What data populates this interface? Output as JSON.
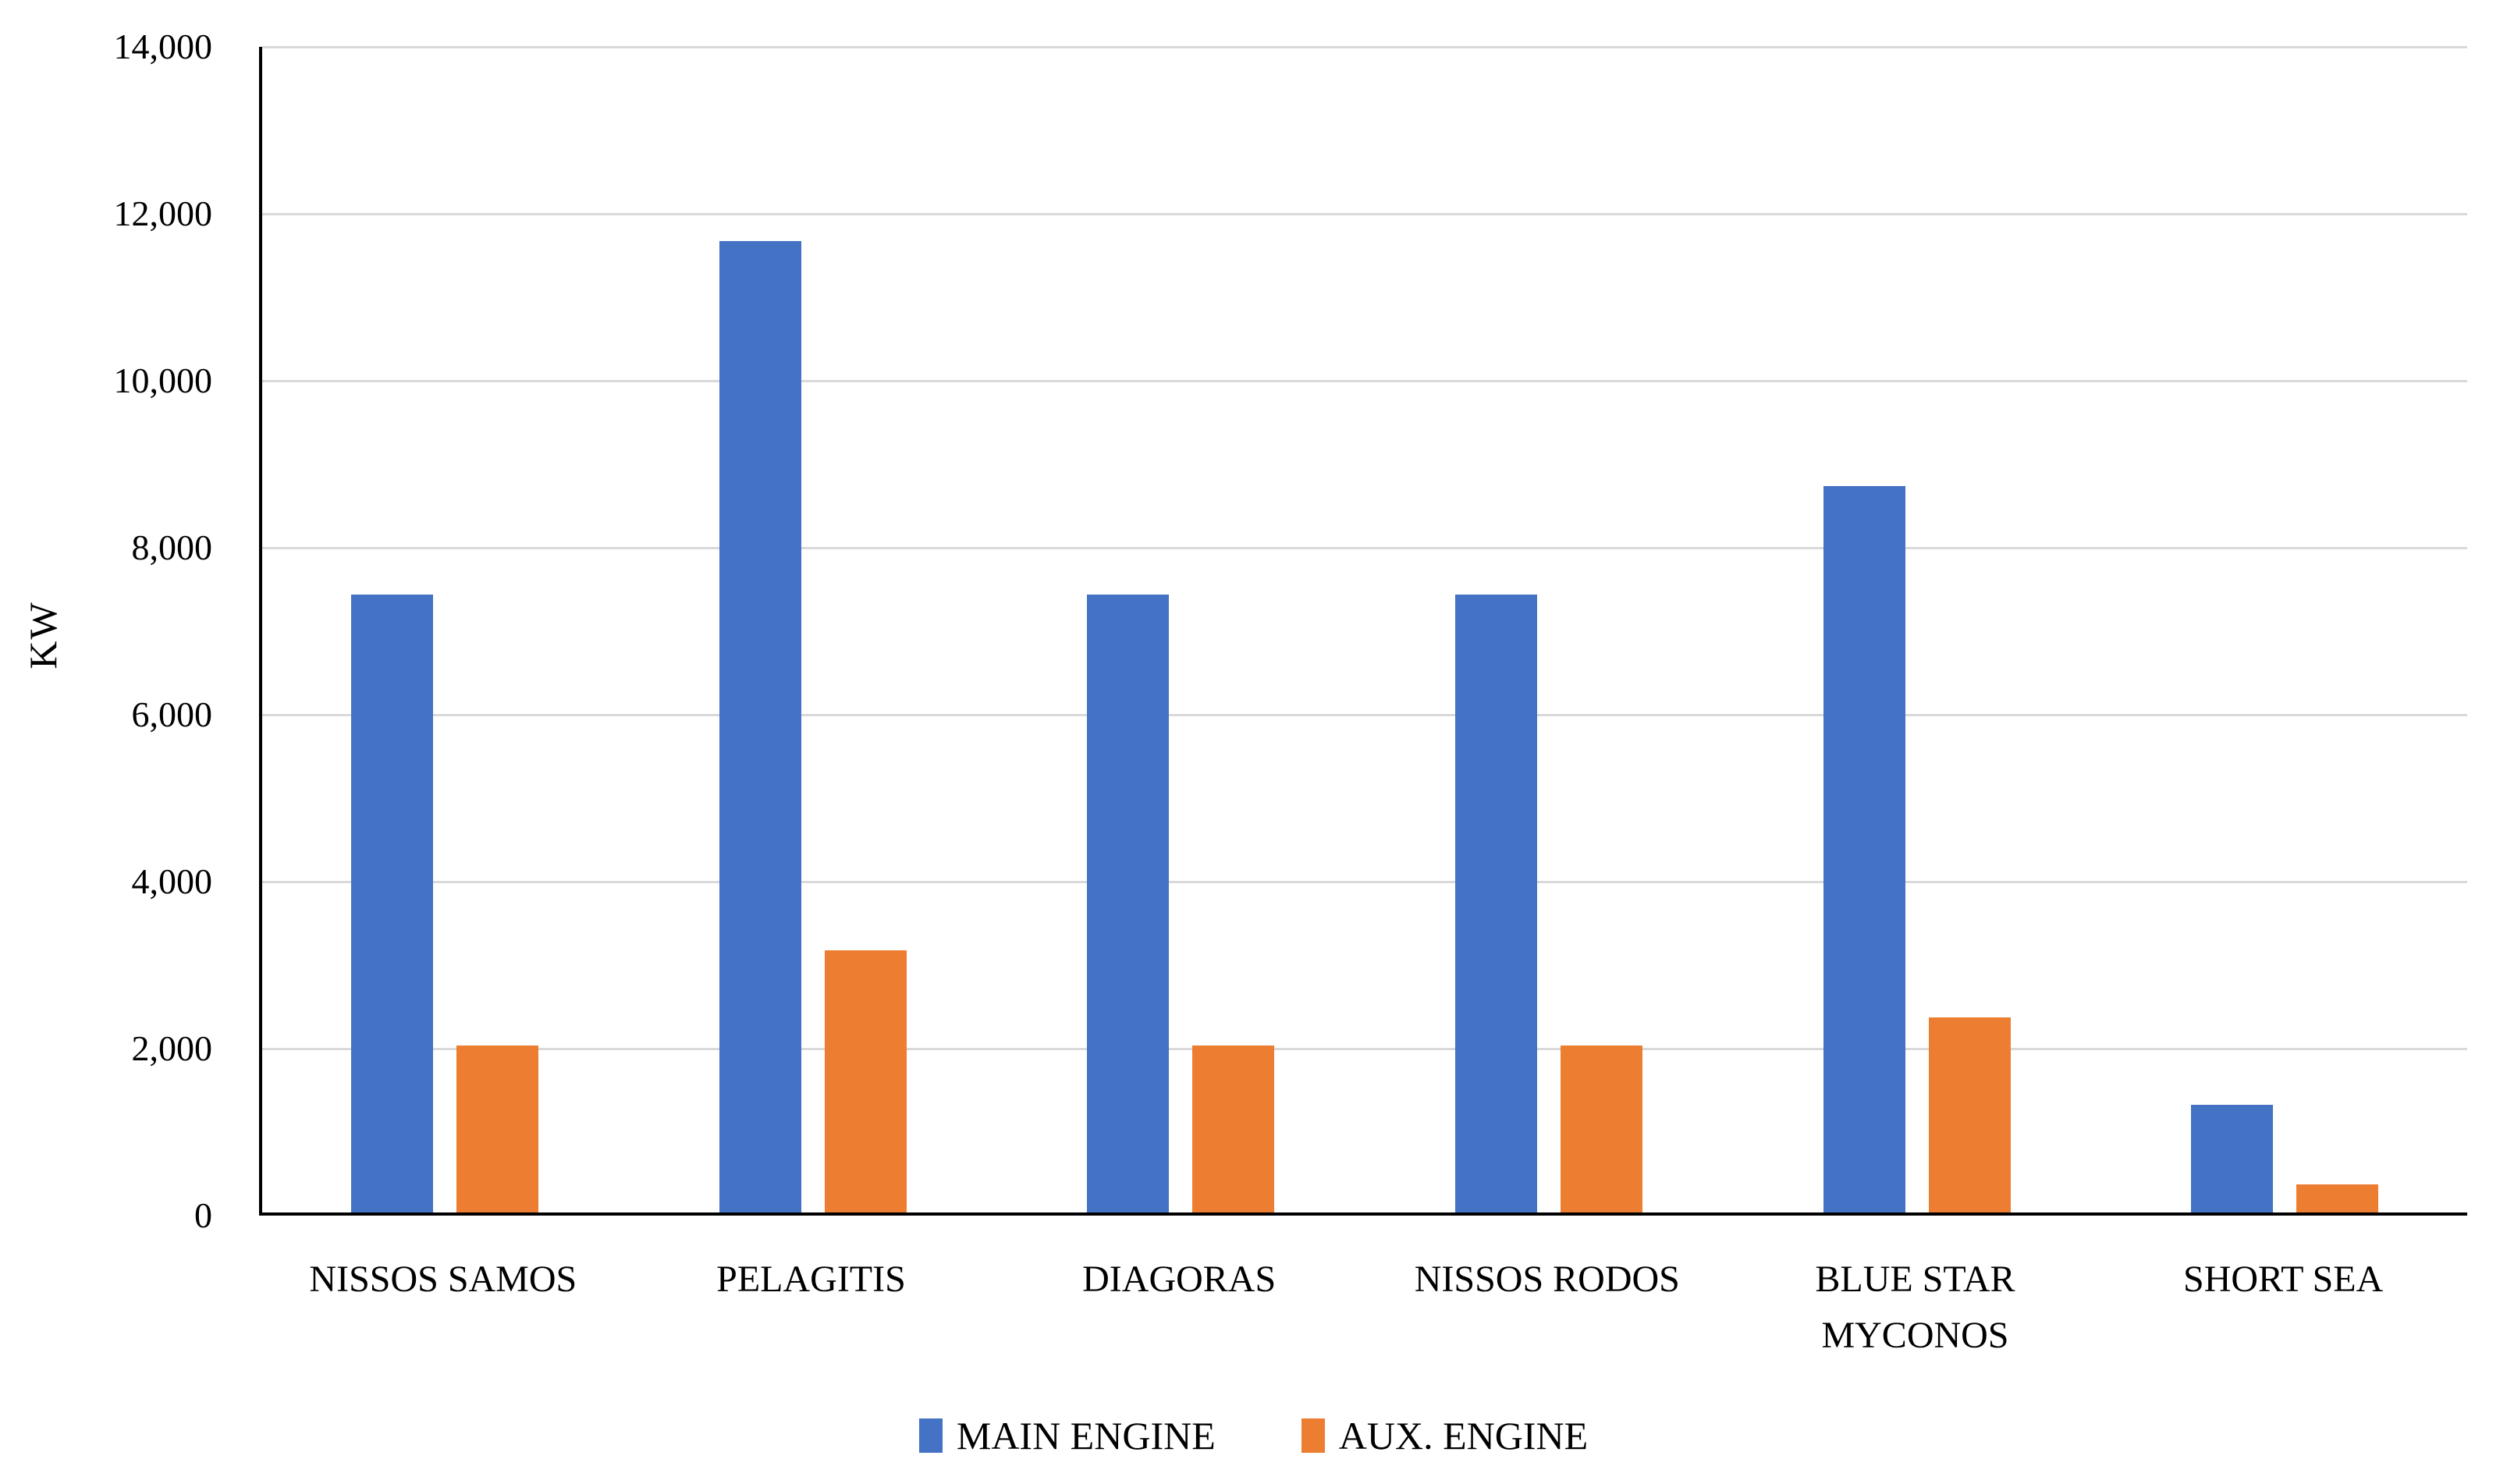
{
  "chart_data": {
    "type": "bar",
    "title": "",
    "xlabel": "",
    "ylabel": "KW",
    "categories": [
      "NISSOS SAMOS",
      "PELAGITIS",
      "DIAGORAS",
      "NISSOS RODOS",
      "BLUE STAR\nMYCONOS",
      "SHORT SEA"
    ],
    "series": [
      {
        "name": "MAIN ENGINE",
        "color": "#4472C4",
        "values": [
          7400,
          11640,
          7400,
          7400,
          8700,
          1290
        ]
      },
      {
        "name": "AUX. ENGINE",
        "color": "#ED7D31",
        "values": [
          2000,
          3140,
          2000,
          2000,
          2340,
          340
        ]
      }
    ],
    "ylim": [
      0,
      14000
    ],
    "ytick_step": 2000,
    "ytick_labels": [
      "0",
      "2,000",
      "4,000",
      "6,000",
      "8,000",
      "10,000",
      "12,000",
      "14,000"
    ],
    "grid": true,
    "gridline_color": "#d9d9d9",
    "axis_color": "#000000",
    "legend_position": "bottom"
  }
}
